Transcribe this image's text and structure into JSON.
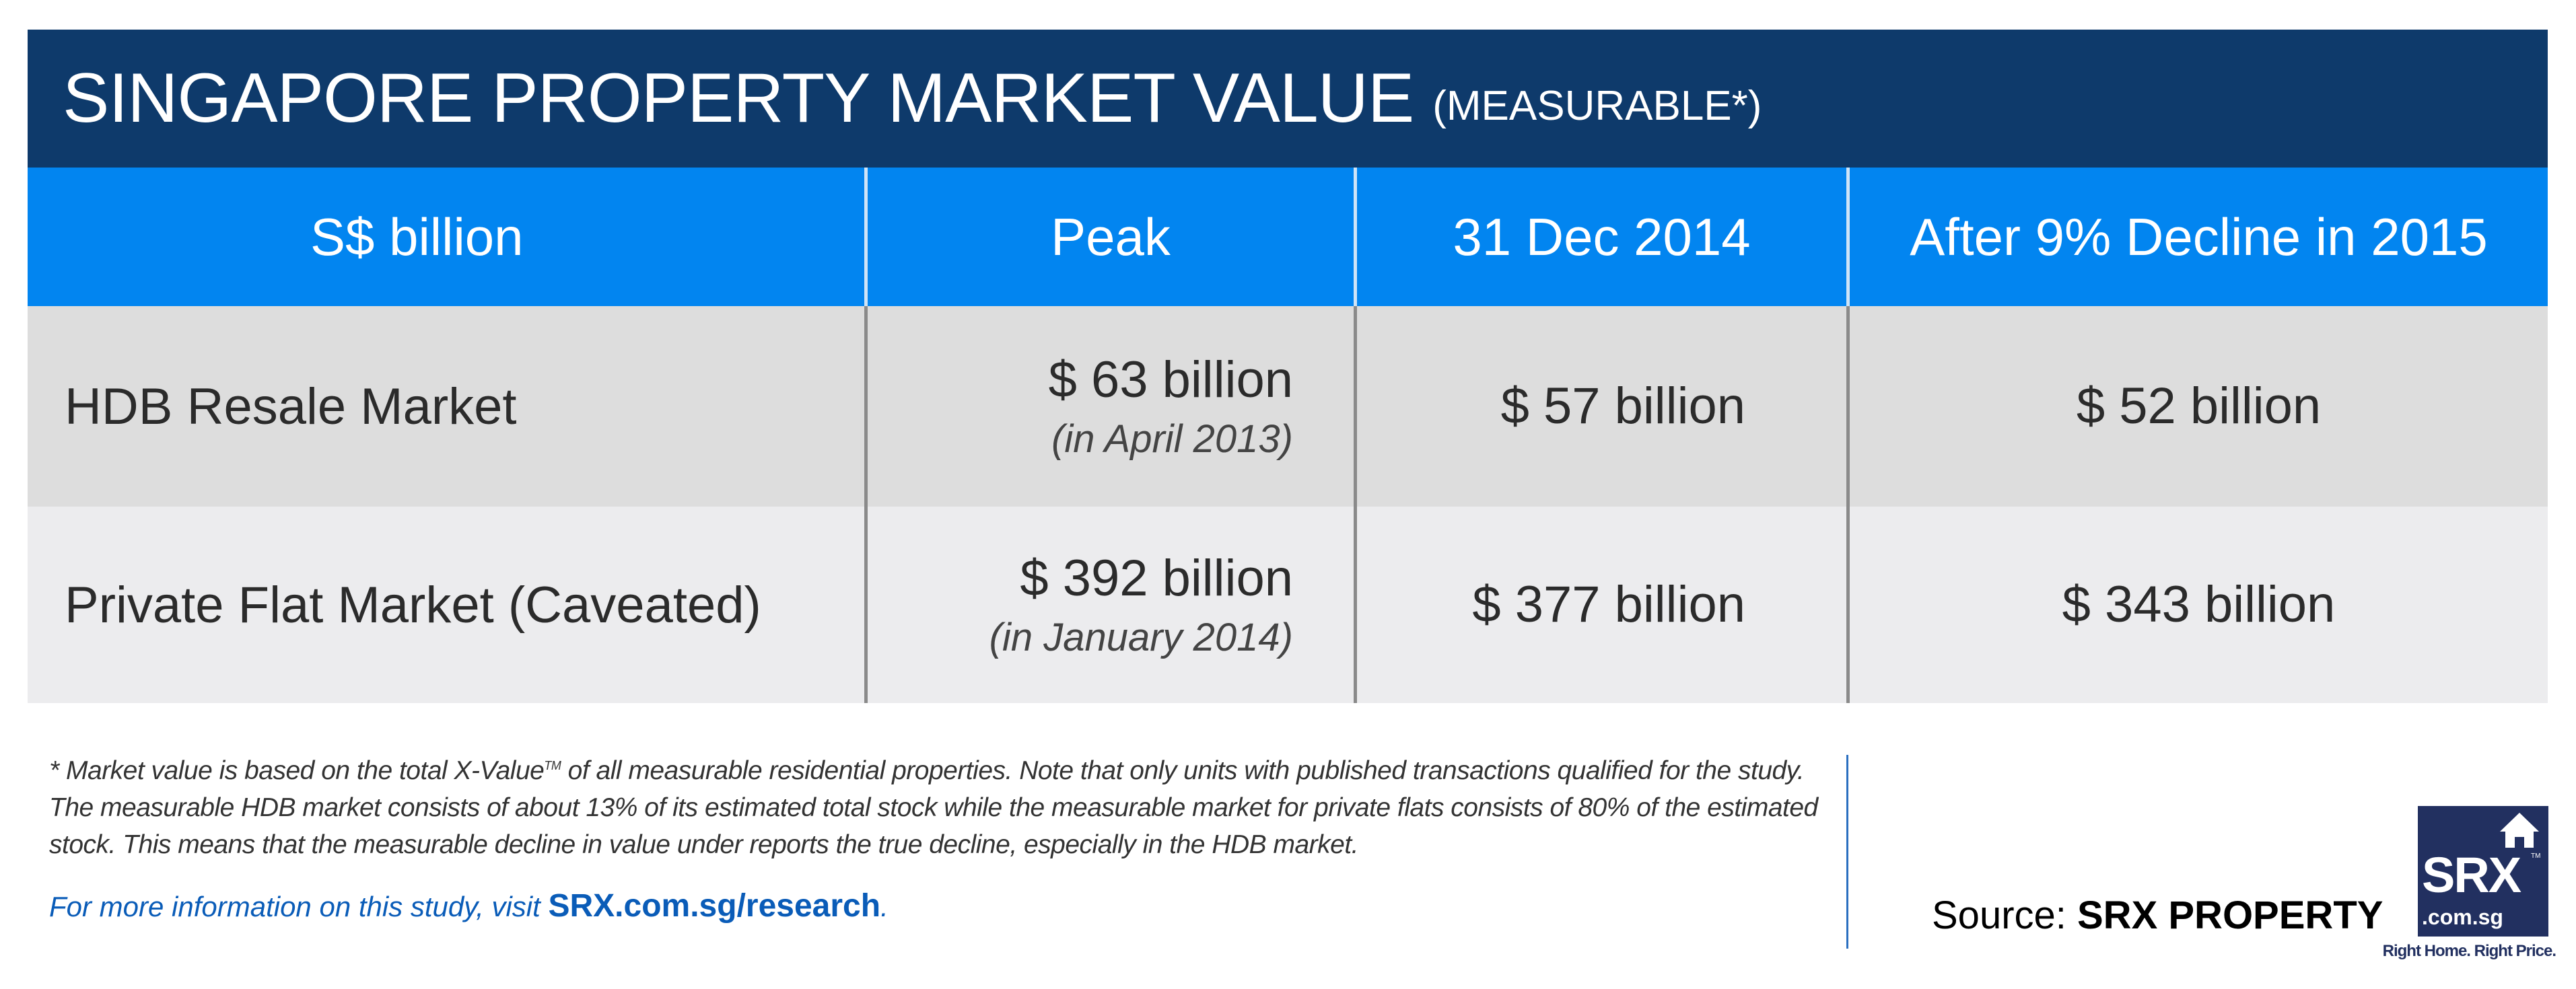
{
  "title": {
    "main": "SINGAPORE PROPERTY MARKET VALUE",
    "sub": "(MEASURABLE*)"
  },
  "colors": {
    "title_bg": "#0e3a6b",
    "header_bg": "#0285f0",
    "row1_bg": "#dddddd",
    "row2_bg": "#ececee",
    "link": "#0a5cb8",
    "logo_bg": "#223060"
  },
  "table": {
    "headers": [
      "S$ billion",
      "Peak",
      "31 Dec 2014",
      "After 9% Decline in 2015"
    ],
    "rows": [
      {
        "label": "HDB Resale Market",
        "peak": "$ 63 billion",
        "peak_date": "(in April 2013)",
        "dec2014": "$ 57 billion",
        "after": "$ 52 billion"
      },
      {
        "label": "Private Flat Market (Caveated)",
        "peak": "$ 392 billion",
        "peak_date": "(in January 2014)",
        "dec2014": "$ 377 billion",
        "after": "$ 343 billion"
      }
    ]
  },
  "footnote": {
    "part1": "* Market value is based on the total X-Value",
    "tm": "TM",
    "part2": " of all measurable residential properties.  Note that only units with published transactions qualified for the study.  The measurable HDB market consists of  about 13% of its estimated total stock while the measurable market for private flats consists of 80% of the estimated stock. This means that the measurable decline in value under reports the true decline, especially in the HDB market."
  },
  "more_info": {
    "prefix": "For more information on this study, visit ",
    "link": "SRX.com.sg/research",
    "suffix": "."
  },
  "source": {
    "label": "Source: ",
    "value": "SRX PROPERTY"
  },
  "logo": {
    "brand": "SRX",
    "tm": "TM",
    "domain": ".com.sg",
    "tagline": "Right Home. Right Price.",
    "icon": "house-icon"
  }
}
